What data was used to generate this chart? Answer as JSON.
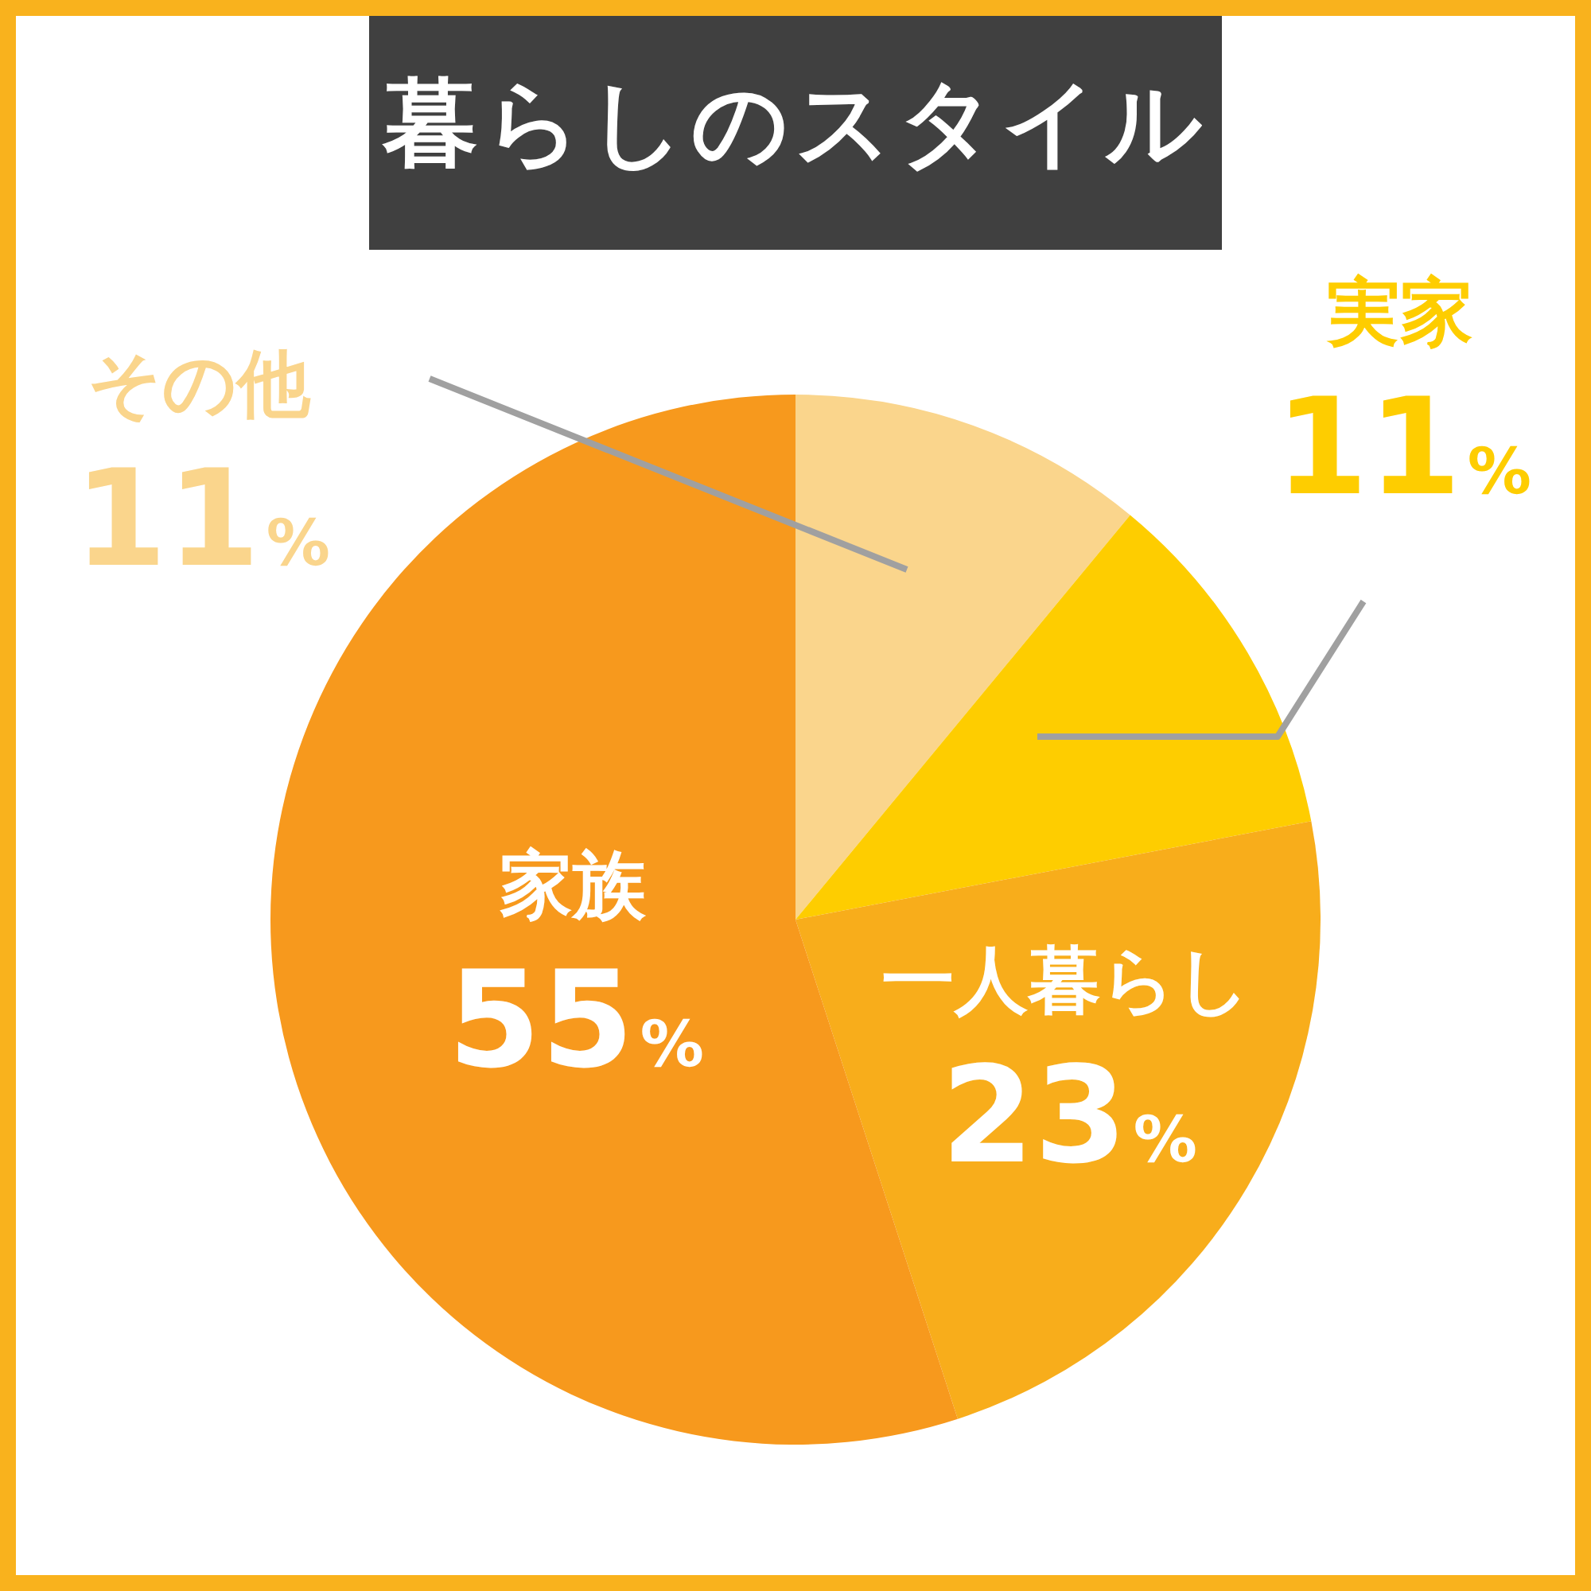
{
  "chart_data": {
    "type": "pie",
    "title": "暮らしのスタイル",
    "categories": [
      "その他",
      "実家",
      "一人暮らし",
      "家族"
    ],
    "values": [
      11,
      11,
      23,
      55
    ],
    "colors": [
      "#fad58c",
      "#fecd00",
      "#f8ad1b",
      "#f7991d"
    ],
    "value_labels": [
      "11%",
      "11%",
      "23%",
      "55%"
    ],
    "legend": false
  }
}
